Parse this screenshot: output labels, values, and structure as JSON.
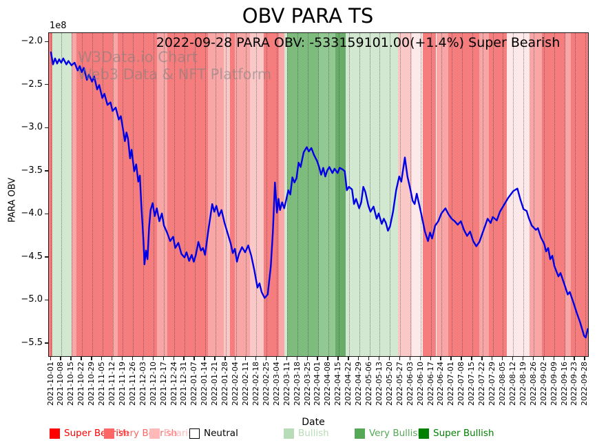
{
  "page": {
    "title": "OBV PARA TS",
    "subtitle": "2022-09-28 PARA OBV: -533159101.00(+1.4%) Super Bearish"
  },
  "watermark": {
    "line1": "W3Data.io Chart",
    "line2": "Web3 Data & NFT Platform"
  },
  "axes": {
    "ylabel": "PARA OBV",
    "xlabel": "Date",
    "offset_text": "1e8",
    "yticks": [
      {
        "label": "−2.0",
        "value": -2.0
      },
      {
        "label": "−2.5",
        "value": -2.5
      },
      {
        "label": "−3.0",
        "value": -3.0
      },
      {
        "label": "−3.5",
        "value": -3.5
      },
      {
        "label": "−4.0",
        "value": -4.0
      },
      {
        "label": "−4.5",
        "value": -4.5
      },
      {
        "label": "−5.0",
        "value": -5.0
      },
      {
        "label": "−5.5",
        "value": -5.5
      }
    ],
    "xticks": [
      "2021-10-01",
      "2021-10-08",
      "2021-10-15",
      "2021-10-22",
      "2021-10-29",
      "2021-11-05",
      "2021-11-12",
      "2021-11-19",
      "2021-11-26",
      "2021-12-03",
      "2021-12-10",
      "2021-12-17",
      "2021-12-24",
      "2021-12-31",
      "2022-01-07",
      "2022-01-14",
      "2022-01-21",
      "2022-01-28",
      "2022-02-04",
      "2022-02-11",
      "2022-02-18",
      "2022-02-25",
      "2022-03-04",
      "2022-03-11",
      "2022-03-18",
      "2022-03-25",
      "2022-04-01",
      "2022-04-08",
      "2022-04-15",
      "2022-04-22",
      "2022-04-29",
      "2022-05-06",
      "2022-05-13",
      "2022-05-20",
      "2022-05-27",
      "2022-06-03",
      "2022-06-10",
      "2022-06-17",
      "2022-06-24",
      "2022-07-01",
      "2022-07-08",
      "2022-07-15",
      "2022-07-22",
      "2022-07-29",
      "2022-08-05",
      "2022-08-12",
      "2022-08-19",
      "2022-08-26",
      "2022-09-02",
      "2022-09-09",
      "2022-09-16",
      "2022-09-23",
      "2022-09-28"
    ]
  },
  "legend": {
    "items": [
      {
        "label": "Super Bearish",
        "swatch": "#ff0000",
        "text_color": "#ff0000",
        "swatch_border": "#ff0000",
        "x": 72
      },
      {
        "label": "Very Bearish",
        "swatch": "#ff6666",
        "text_color": "#ff6666",
        "swatch_border": "#ff6666",
        "x": 151
      },
      {
        "label": "Bearish",
        "swatch": "#ffb9b9",
        "text_color": "#ffb9b9",
        "swatch_border": "#ffb9b9",
        "x": 217
      },
      {
        "label": "Neutral",
        "swatch": "#ffffff",
        "text_color": "#000000",
        "swatch_border": "#000000",
        "x": 275
      },
      {
        "label": "Bullish",
        "swatch": "#b7dcb7",
        "text_color": "#b7dcb7",
        "swatch_border": "#b7dcb7",
        "x": 412
      },
      {
        "label": "Very Bullish",
        "swatch": "#55a855",
        "text_color": "#55a855",
        "swatch_border": "#55a855",
        "x": 515
      },
      {
        "label": "Super Bullish",
        "swatch": "#008000",
        "text_color": "#008000",
        "swatch_border": "#008000",
        "x": 608
      }
    ]
  },
  "chart_data": {
    "type": "line",
    "title": "OBV PARA TS",
    "subtitle": "2022-09-28 PARA OBV: -533159101.00(+1.4%) Super Bearish",
    "xlabel": "Date",
    "ylabel": "PARA OBV",
    "value_unit": "1e8",
    "x_unit": "weeks since 2021-10-01; one x tick per week label",
    "ylim": [
      -5.63,
      -1.9
    ],
    "xlim_weeks": [
      -0.2,
      52.35
    ],
    "grid": "vertical dotted line at every weekly tick",
    "legend_position": "bottom",
    "final_value": -533159101.0,
    "final_change_pct": 1.4,
    "final_sentiment": "Super Bearish",
    "series": [
      {
        "name": "PARA OBV",
        "color": "#0000e6",
        "points": [
          [
            0.0,
            -2.12
          ],
          [
            0.2,
            -2.26
          ],
          [
            0.4,
            -2.19
          ],
          [
            0.6,
            -2.25
          ],
          [
            0.8,
            -2.2
          ],
          [
            1.0,
            -2.24
          ],
          [
            1.2,
            -2.19
          ],
          [
            1.5,
            -2.26
          ],
          [
            1.7,
            -2.22
          ],
          [
            2.0,
            -2.27
          ],
          [
            2.3,
            -2.24
          ],
          [
            2.6,
            -2.33
          ],
          [
            2.8,
            -2.28
          ],
          [
            3.0,
            -2.35
          ],
          [
            3.2,
            -2.3
          ],
          [
            3.5,
            -2.44
          ],
          [
            3.7,
            -2.38
          ],
          [
            4.0,
            -2.46
          ],
          [
            4.2,
            -2.4
          ],
          [
            4.5,
            -2.55
          ],
          [
            4.7,
            -2.5
          ],
          [
            5.0,
            -2.65
          ],
          [
            5.2,
            -2.6
          ],
          [
            5.5,
            -2.73
          ],
          [
            5.8,
            -2.7
          ],
          [
            6.0,
            -2.8
          ],
          [
            6.3,
            -2.76
          ],
          [
            6.6,
            -2.9
          ],
          [
            6.8,
            -2.86
          ],
          [
            7.0,
            -3.0
          ],
          [
            7.2,
            -3.15
          ],
          [
            7.35,
            -3.05
          ],
          [
            7.5,
            -3.12
          ],
          [
            7.7,
            -3.35
          ],
          [
            7.85,
            -3.25
          ],
          [
            8.1,
            -3.5
          ],
          [
            8.3,
            -3.42
          ],
          [
            8.5,
            -3.62
          ],
          [
            8.65,
            -3.55
          ],
          [
            8.8,
            -3.9
          ],
          [
            9.0,
            -4.3
          ],
          [
            9.1,
            -4.58
          ],
          [
            9.25,
            -4.42
          ],
          [
            9.4,
            -4.52
          ],
          [
            9.55,
            -4.15
          ],
          [
            9.7,
            -3.95
          ],
          [
            9.9,
            -3.87
          ],
          [
            10.1,
            -4.02
          ],
          [
            10.3,
            -3.93
          ],
          [
            10.55,
            -4.08
          ],
          [
            10.8,
            -3.99
          ],
          [
            11.0,
            -4.13
          ],
          [
            11.3,
            -4.21
          ],
          [
            11.6,
            -4.31
          ],
          [
            11.9,
            -4.26
          ],
          [
            12.1,
            -4.39
          ],
          [
            12.4,
            -4.33
          ],
          [
            12.7,
            -4.46
          ],
          [
            13.0,
            -4.5
          ],
          [
            13.2,
            -4.44
          ],
          [
            13.45,
            -4.54
          ],
          [
            13.7,
            -4.47
          ],
          [
            13.9,
            -4.55
          ],
          [
            14.1,
            -4.47
          ],
          [
            14.35,
            -4.32
          ],
          [
            14.6,
            -4.42
          ],
          [
            14.8,
            -4.39
          ],
          [
            15.0,
            -4.47
          ],
          [
            15.3,
            -4.2
          ],
          [
            15.7,
            -3.88
          ],
          [
            15.9,
            -3.97
          ],
          [
            16.1,
            -3.9
          ],
          [
            16.35,
            -4.02
          ],
          [
            16.6,
            -3.95
          ],
          [
            16.9,
            -4.1
          ],
          [
            17.1,
            -4.18
          ],
          [
            17.5,
            -4.34
          ],
          [
            17.7,
            -4.45
          ],
          [
            17.9,
            -4.4
          ],
          [
            18.1,
            -4.55
          ],
          [
            18.3,
            -4.46
          ],
          [
            18.6,
            -4.38
          ],
          [
            18.9,
            -4.44
          ],
          [
            19.2,
            -4.36
          ],
          [
            19.5,
            -4.48
          ],
          [
            19.8,
            -4.65
          ],
          [
            20.1,
            -4.85
          ],
          [
            20.3,
            -4.8
          ],
          [
            20.5,
            -4.9
          ],
          [
            20.8,
            -4.97
          ],
          [
            21.1,
            -4.93
          ],
          [
            21.4,
            -4.6
          ],
          [
            21.6,
            -4.2
          ],
          [
            21.8,
            -3.63
          ],
          [
            22.0,
            -3.98
          ],
          [
            22.15,
            -3.82
          ],
          [
            22.3,
            -3.95
          ],
          [
            22.5,
            -3.86
          ],
          [
            22.7,
            -3.93
          ],
          [
            22.9,
            -3.83
          ],
          [
            23.1,
            -3.72
          ],
          [
            23.3,
            -3.77
          ],
          [
            23.5,
            -3.57
          ],
          [
            23.7,
            -3.63
          ],
          [
            23.9,
            -3.58
          ],
          [
            24.1,
            -3.4
          ],
          [
            24.3,
            -3.45
          ],
          [
            24.6,
            -3.28
          ],
          [
            24.9,
            -3.22
          ],
          [
            25.1,
            -3.27
          ],
          [
            25.35,
            -3.23
          ],
          [
            25.6,
            -3.31
          ],
          [
            25.9,
            -3.38
          ],
          [
            26.1,
            -3.45
          ],
          [
            26.3,
            -3.54
          ],
          [
            26.5,
            -3.46
          ],
          [
            26.7,
            -3.56
          ],
          [
            26.9,
            -3.49
          ],
          [
            27.1,
            -3.45
          ],
          [
            27.4,
            -3.52
          ],
          [
            27.6,
            -3.47
          ],
          [
            27.9,
            -3.52
          ],
          [
            28.1,
            -3.46
          ],
          [
            28.4,
            -3.48
          ],
          [
            28.6,
            -3.5
          ],
          [
            28.8,
            -3.72
          ],
          [
            29.0,
            -3.68
          ],
          [
            29.3,
            -3.71
          ],
          [
            29.5,
            -3.88
          ],
          [
            29.7,
            -3.82
          ],
          [
            30.0,
            -3.93
          ],
          [
            30.2,
            -3.86
          ],
          [
            30.4,
            -3.68
          ],
          [
            30.6,
            -3.74
          ],
          [
            30.9,
            -3.9
          ],
          [
            31.1,
            -3.97
          ],
          [
            31.4,
            -3.91
          ],
          [
            31.7,
            -4.05
          ],
          [
            31.9,
            -3.99
          ],
          [
            32.2,
            -4.11
          ],
          [
            32.4,
            -4.05
          ],
          [
            32.6,
            -4.1
          ],
          [
            32.8,
            -4.19
          ],
          [
            33.0,
            -4.14
          ],
          [
            33.3,
            -3.97
          ],
          [
            33.6,
            -3.72
          ],
          [
            33.9,
            -3.56
          ],
          [
            34.1,
            -3.62
          ],
          [
            34.45,
            -3.34
          ],
          [
            34.7,
            -3.56
          ],
          [
            35.0,
            -3.72
          ],
          [
            35.2,
            -3.84
          ],
          [
            35.4,
            -3.88
          ],
          [
            35.6,
            -3.76
          ],
          [
            36.0,
            -3.97
          ],
          [
            36.4,
            -4.2
          ],
          [
            36.7,
            -4.31
          ],
          [
            36.9,
            -4.21
          ],
          [
            37.1,
            -4.28
          ],
          [
            37.4,
            -4.13
          ],
          [
            37.7,
            -4.08
          ],
          [
            38.0,
            -3.99
          ],
          [
            38.4,
            -3.93
          ],
          [
            38.7,
            -4.0
          ],
          [
            39.0,
            -4.05
          ],
          [
            39.3,
            -4.08
          ],
          [
            39.6,
            -4.12
          ],
          [
            39.9,
            -4.08
          ],
          [
            40.2,
            -4.18
          ],
          [
            40.5,
            -4.25
          ],
          [
            40.8,
            -4.2
          ],
          [
            41.1,
            -4.31
          ],
          [
            41.4,
            -4.37
          ],
          [
            41.7,
            -4.32
          ],
          [
            42.0,
            -4.22
          ],
          [
            42.3,
            -4.12
          ],
          [
            42.5,
            -4.05
          ],
          [
            42.8,
            -4.1
          ],
          [
            43.0,
            -4.03
          ],
          [
            43.4,
            -4.07
          ],
          [
            43.7,
            -3.97
          ],
          [
            44.0,
            -3.91
          ],
          [
            44.5,
            -3.81
          ],
          [
            45.0,
            -3.73
          ],
          [
            45.4,
            -3.7
          ],
          [
            45.7,
            -3.83
          ],
          [
            46.0,
            -3.94
          ],
          [
            46.3,
            -3.96
          ],
          [
            46.5,
            -4.04
          ],
          [
            46.8,
            -4.13
          ],
          [
            47.2,
            -4.18
          ],
          [
            47.4,
            -4.16
          ],
          [
            47.7,
            -4.27
          ],
          [
            48.0,
            -4.34
          ],
          [
            48.2,
            -4.43
          ],
          [
            48.4,
            -4.39
          ],
          [
            48.6,
            -4.52
          ],
          [
            48.8,
            -4.48
          ],
          [
            49.0,
            -4.6
          ],
          [
            49.4,
            -4.72
          ],
          [
            49.6,
            -4.68
          ],
          [
            50.0,
            -4.82
          ],
          [
            50.3,
            -4.93
          ],
          [
            50.5,
            -4.9
          ],
          [
            50.9,
            -5.04
          ],
          [
            51.2,
            -5.15
          ],
          [
            51.5,
            -5.25
          ],
          [
            51.9,
            -5.41
          ],
          [
            52.05,
            -5.43
          ],
          [
            52.25,
            -5.33
          ]
        ]
      }
    ],
    "sentiment_bands": {
      "colors": {
        "very_bearish": "#f57d7d",
        "bearish": "#f8a6a6",
        "bearish_light": "#fbc8c8",
        "bearish_vlight": "#fde9e9",
        "bullish": "#d3e8d0",
        "very_bullish": "#7ebc7e",
        "very_bullish_mid": "#92c892",
        "very_bullish_dark": "#69ab69"
      },
      "spans": [
        [
          -0.2,
          0.15,
          "very_bearish"
        ],
        [
          0.15,
          2.0,
          "bullish"
        ],
        [
          2.0,
          2.5,
          "bearish"
        ],
        [
          2.5,
          6.0,
          "very_bearish"
        ],
        [
          6.0,
          6.5,
          "bearish"
        ],
        [
          6.5,
          10.3,
          "very_bearish"
        ],
        [
          10.3,
          11.3,
          "bearish"
        ],
        [
          11.3,
          15.3,
          "very_bearish"
        ],
        [
          15.3,
          16.8,
          "bearish"
        ],
        [
          16.8,
          17.4,
          "bearish_light"
        ],
        [
          17.4,
          17.9,
          "very_bearish"
        ],
        [
          17.9,
          19.4,
          "bearish"
        ],
        [
          19.4,
          20.7,
          "bearish_light"
        ],
        [
          20.7,
          22.2,
          "very_bearish"
        ],
        [
          22.2,
          22.7,
          "bearish"
        ],
        [
          22.7,
          23.0,
          "bullish"
        ],
        [
          23.0,
          26.1,
          "very_bullish"
        ],
        [
          26.1,
          27.7,
          "very_bullish_mid"
        ],
        [
          27.7,
          28.7,
          "very_bullish_dark"
        ],
        [
          28.7,
          33.8,
          "bullish"
        ],
        [
          33.8,
          35.1,
          "bearish_light"
        ],
        [
          35.1,
          36.2,
          "bearish_vlight"
        ],
        [
          36.2,
          37.5,
          "very_bearish"
        ],
        [
          37.5,
          38.7,
          "bearish"
        ],
        [
          38.7,
          41.7,
          "very_bearish"
        ],
        [
          41.7,
          42.6,
          "bearish"
        ],
        [
          42.6,
          44.4,
          "very_bearish"
        ],
        [
          44.4,
          46.6,
          "bearish_vlight"
        ],
        [
          46.6,
          47.8,
          "bearish"
        ],
        [
          47.8,
          50.1,
          "very_bearish"
        ],
        [
          50.1,
          50.6,
          "bearish"
        ],
        [
          50.6,
          52.35,
          "very_bearish"
        ]
      ]
    }
  }
}
